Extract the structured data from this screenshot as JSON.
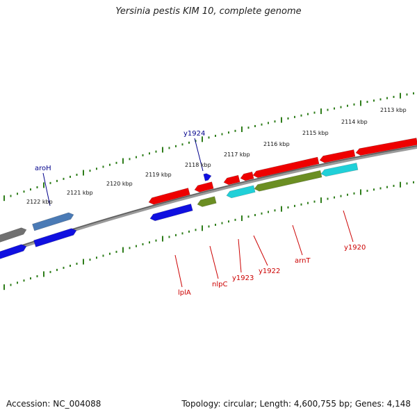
{
  "title": "Yersinia pestis KIM 10, complete genome",
  "accession": "Accession: NC_004088",
  "summary": "Topology: circular; Length: 4,600,755 bp; Genes: 4,148",
  "colors": {
    "backbone": "#808080",
    "tick": "#2e7d1a",
    "forward_label": "#00008b",
    "reverse_label": "#cc0000",
    "red": "#ee0000",
    "blue": "#1010e0",
    "gray": "#707070",
    "steel": "#4a7ab5",
    "olive": "#6b8e23",
    "cyan": "#20d0d8"
  },
  "kbp_labels": [
    "2122 kbp",
    "2121 kbp",
    "2120 kbp",
    "2119 kbp",
    "2118 kbp",
    "2117 kbp",
    "2116 kbp",
    "2115 kbp",
    "2114 kbp",
    "2113 kbp"
  ],
  "gene_labels": {
    "forward": [
      "aroH",
      "y1924"
    ],
    "reverse": [
      "lplA",
      "nlpC",
      "y1923",
      "y1922",
      "arnT",
      "y1920"
    ]
  }
}
